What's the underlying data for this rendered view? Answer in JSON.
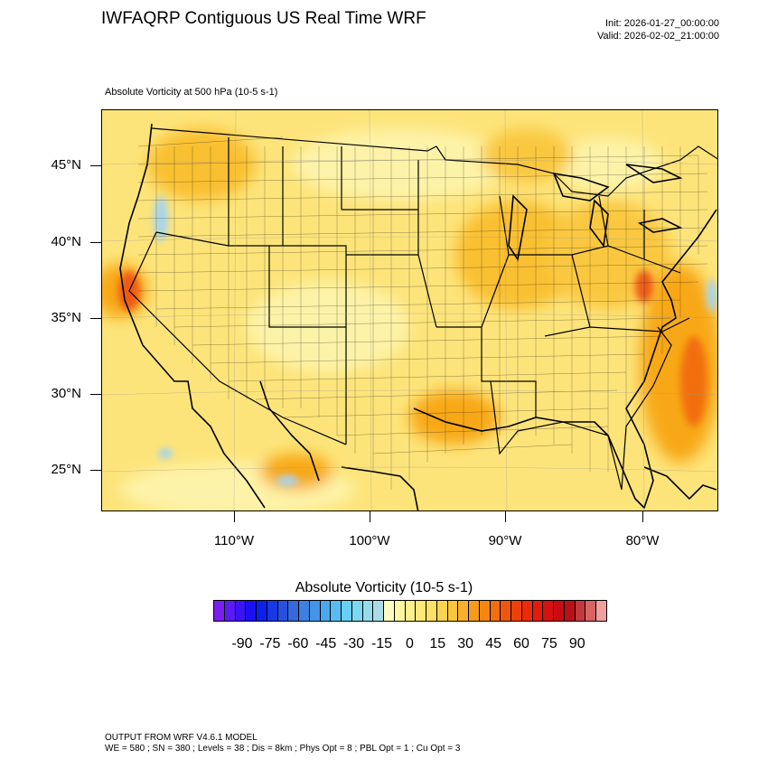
{
  "header": {
    "title": "IWFAQRP Contiguous US Real Time WRF",
    "init": "Init: 2026-01-27_00:00:00",
    "valid": "Valid: 2026-02-02_21:00:00"
  },
  "field_title": "Absolute Vorticity at 500 hPa   (10-5 s-1)",
  "map": {
    "lat_labels": [
      "45°N",
      "40°N",
      "35°N",
      "30°N",
      "25°N"
    ],
    "lon_labels": [
      "110°W",
      "100°W",
      "90°W",
      "80°W"
    ],
    "background_color": "#fde47a",
    "highlight_colors": {
      "light_yellow": "#fdf3a8",
      "orange": "#f8a818",
      "red_orange": "#ee5a18",
      "light_blue": "#a8d4ec"
    }
  },
  "colorbar": {
    "title": "Absolute Vorticity  (10-5 s-1)",
    "tick_labels": [
      "-90",
      "-75",
      "-60",
      "-45",
      "-30",
      "-15",
      "0",
      "15",
      "30",
      "45",
      "60",
      "75",
      "90"
    ],
    "colors": [
      "#7a1ff0",
      "#5a1af4",
      "#3a14f6",
      "#1a10f4",
      "#0a20ee",
      "#1838e6",
      "#2850de",
      "#3468dc",
      "#3c80e2",
      "#4494e8",
      "#4ca8ee",
      "#58bcf2",
      "#68cef4",
      "#7cd8f0",
      "#94dcec",
      "#aadce8",
      "#fefcc0",
      "#fef6a0",
      "#fdf08a",
      "#fde878",
      "#fde064",
      "#fcd452",
      "#fac43e",
      "#f8b02c",
      "#f69c1c",
      "#f48612",
      "#f26e0e",
      "#f0560c",
      "#ee400a",
      "#ec2a0a",
      "#e61a0c",
      "#d8100e",
      "#c80c12",
      "#ba1018",
      "#c43a3c",
      "#d86466",
      "#f0a0a0"
    ]
  },
  "footer": {
    "line1": "OUTPUT FROM WRF V4.6.1 MODEL",
    "line2": "WE = 580 ; SN = 380 ; Levels = 38 ; Dis = 8km ; Phys Opt = 8 ; PBL Opt = 1 ; Cu Opt = 3"
  }
}
